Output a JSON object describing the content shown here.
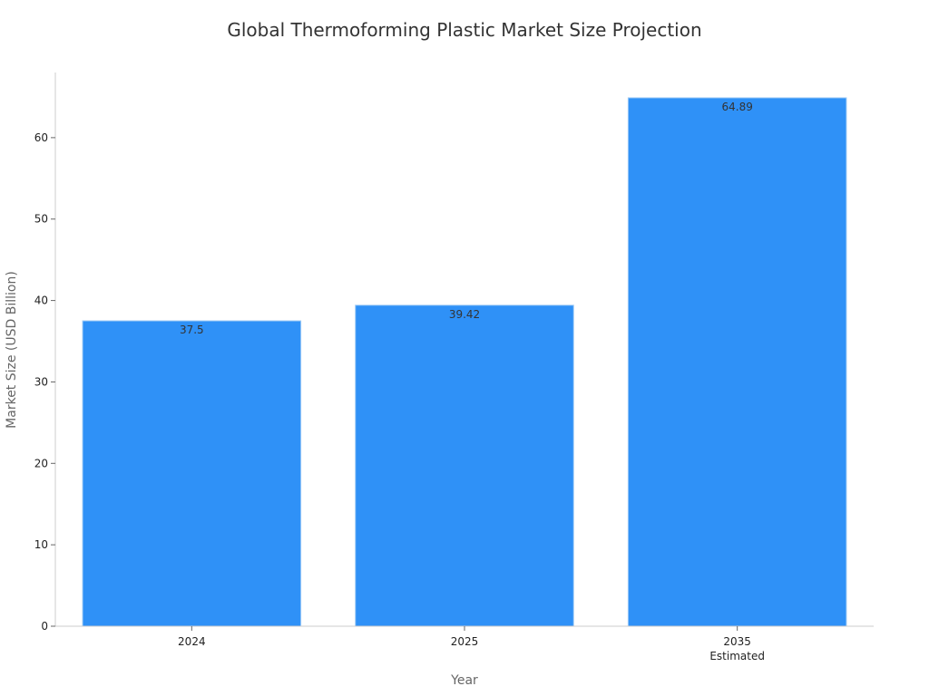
{
  "chart_data": {
    "type": "bar",
    "title": "Global Thermoforming Plastic Market Size Projection",
    "xlabel": "Year",
    "ylabel": "Market Size (USD Billion)",
    "categories": [
      "2024",
      "2025",
      "2035"
    ],
    "category_sublabels": [
      "",
      "",
      "Estimated"
    ],
    "values": [
      37.5,
      39.42,
      64.89
    ],
    "data_labels": [
      "37.5",
      "39.42",
      "64.89"
    ],
    "ylim": [
      0,
      68
    ],
    "yticks": [
      0,
      10,
      20,
      30,
      40,
      50,
      60
    ],
    "grid": false,
    "bar_color": "#2f91f7",
    "bar_edge_color": "#9cc9f5"
  }
}
